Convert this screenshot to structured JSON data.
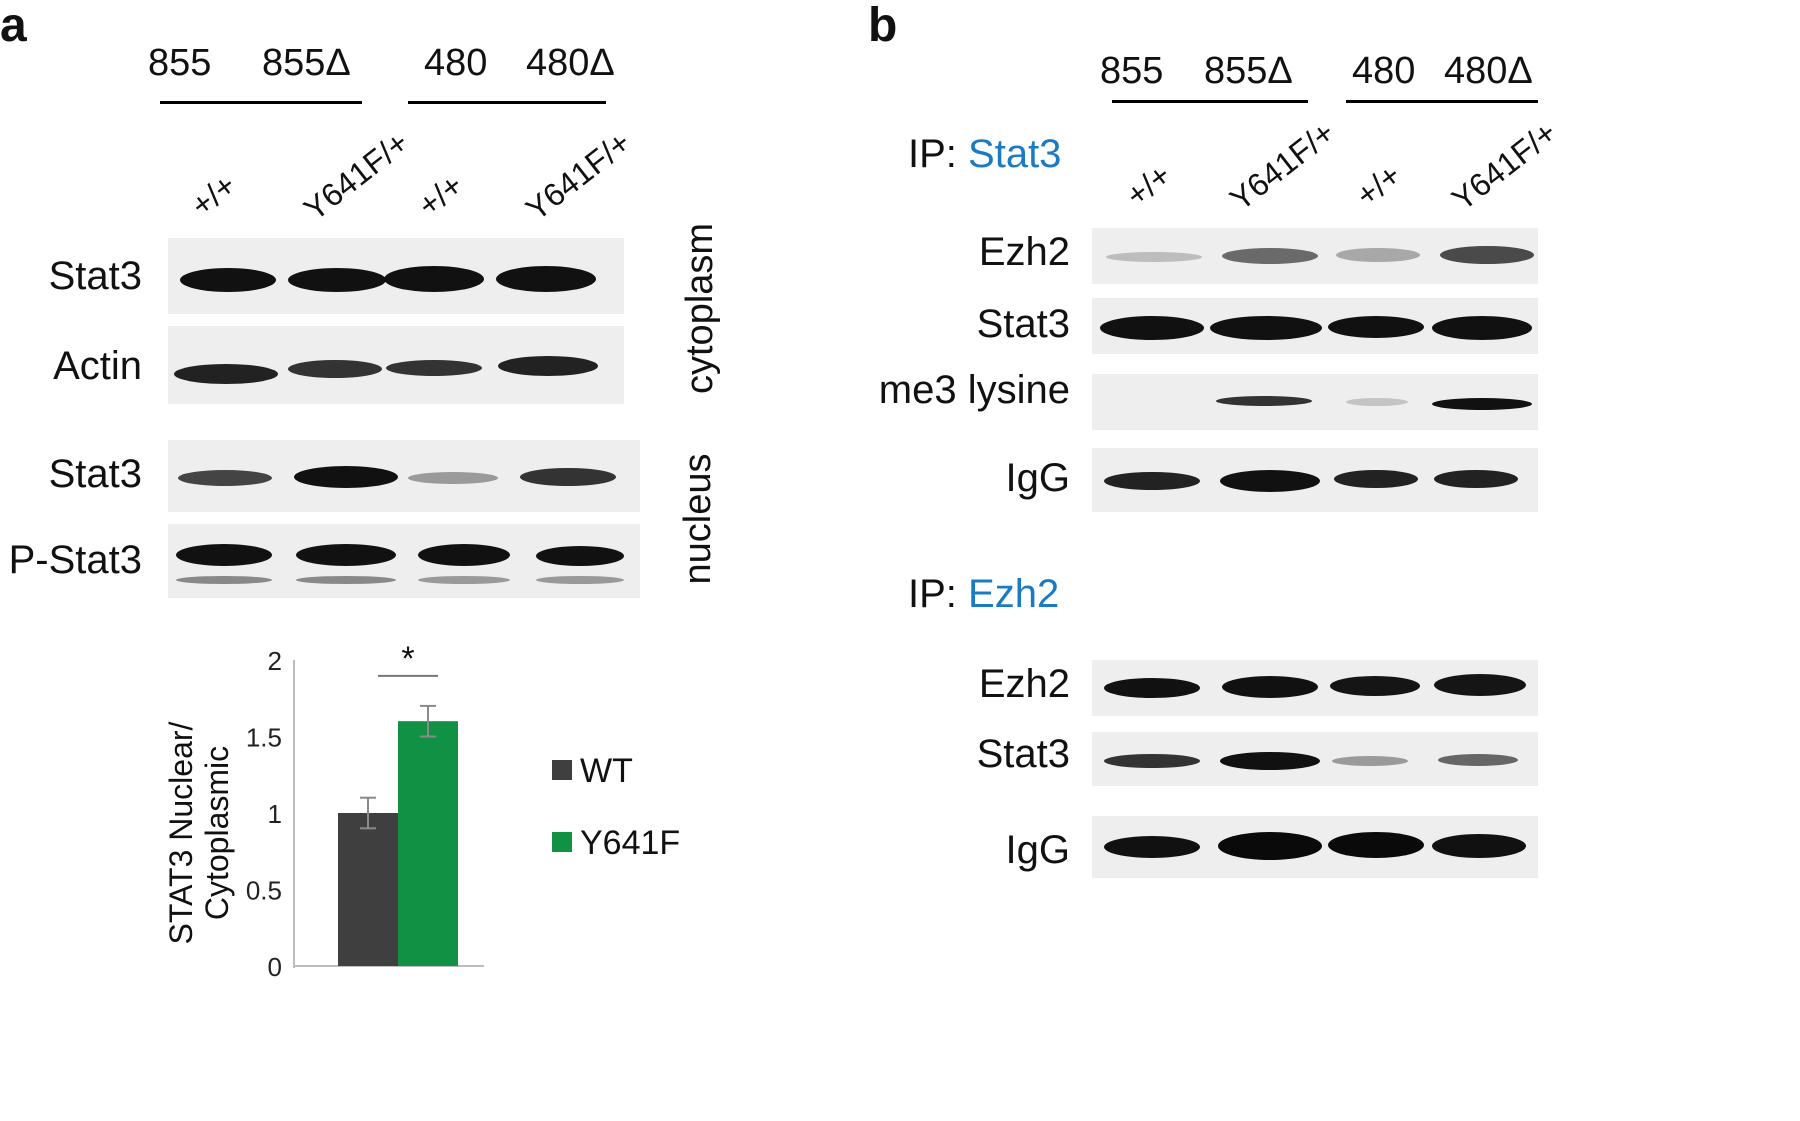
{
  "colors": {
    "accent_blue": "#1a7bc4",
    "wt": "#3f3f3f",
    "y641f": "#119143",
    "blot_bg": "#eeeeee",
    "band": "#111111"
  },
  "panel_a": {
    "letter": "a",
    "groups": [
      "855",
      "855Δ",
      "480",
      "480Δ"
    ],
    "lanes": [
      "+/+",
      "Y641F/+",
      "+/+",
      "Y641F/+"
    ],
    "rows": [
      "Stat3",
      "Actin",
      "Stat3",
      "P-Stat3"
    ],
    "fractions": [
      "cytoplasm",
      "nucleus"
    ]
  },
  "panel_b": {
    "letter": "b",
    "groups": [
      "855",
      "855Δ",
      "480",
      "480Δ"
    ],
    "lanes": [
      "+/+",
      "Y641F/+",
      "+/+",
      "Y641F/+"
    ],
    "ip1": {
      "prefix": "IP: ",
      "target": "Stat3",
      "rows": [
        "Ezh2",
        "Stat3",
        "me3 lysine",
        "IgG"
      ]
    },
    "ip2": {
      "prefix": "IP: ",
      "target": "Ezh2",
      "rows": [
        "Ezh2",
        "Stat3",
        "IgG"
      ]
    }
  },
  "chart_data": {
    "type": "bar",
    "categories": [
      "WT",
      "Y641F"
    ],
    "values": [
      1.0,
      1.6
    ],
    "errors": [
      0.1,
      0.1
    ],
    "colors": [
      "#3f3f3f",
      "#119143"
    ],
    "ylabel_line1": "STAT3 Nuclear/",
    "ylabel_line2": "Cytoplasmic",
    "ylim": [
      0,
      2
    ],
    "yticks": [
      "0",
      "0.5",
      "1",
      "1.5",
      "2"
    ],
    "ytick_values": [
      0,
      0.5,
      1,
      1.5,
      2
    ],
    "significance": "*",
    "legend": [
      "WT",
      "Y641F"
    ],
    "legend_position": "right",
    "grid": false
  }
}
